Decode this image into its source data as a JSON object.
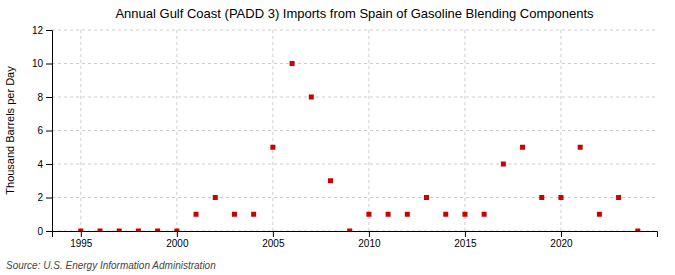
{
  "chart_data": {
    "type": "scatter",
    "title": "Annual Gulf Coast (PADD 3) Imports from Spain of Gasoline Blending Components",
    "ylabel": "Thousand Barrels per Day",
    "annotation": "Source: U.S. Energy Information Administration",
    "color": "#cc0000",
    "marker": "square",
    "grid": true,
    "xlim": [
      1993.5,
      2025
    ],
    "ylim": [
      0,
      12
    ],
    "xticks": [
      1995,
      2000,
      2005,
      2010,
      2015,
      2020
    ],
    "yticks": [
      0,
      2,
      4,
      6,
      8,
      10,
      12
    ],
    "x": [
      1995,
      1996,
      1997,
      1998,
      1999,
      2000,
      2001,
      2002,
      2003,
      2004,
      2005,
      2006,
      2007,
      2008,
      2009,
      2010,
      2011,
      2012,
      2013,
      2014,
      2015,
      2016,
      2017,
      2018,
      2019,
      2020,
      2021,
      2022,
      2023,
      2024
    ],
    "values": [
      0,
      0,
      0,
      0,
      0,
      0,
      1,
      2,
      1,
      1,
      5,
      10,
      8,
      3,
      0,
      1,
      1,
      1,
      2,
      1,
      1,
      1,
      4,
      5,
      2,
      2,
      5,
      1,
      2,
      0
    ]
  }
}
